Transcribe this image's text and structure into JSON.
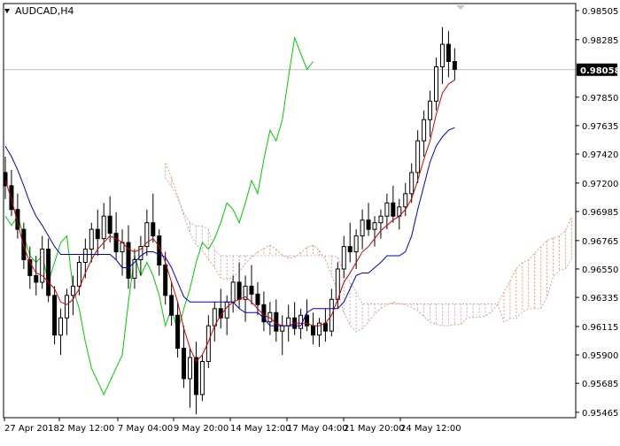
{
  "chart_data": {
    "type": "candlestick",
    "symbol_label": "AUDCAD,H4",
    "price_ticks": [
      "0.98505",
      "0.98285",
      "0.97850",
      "0.97635",
      "0.97420",
      "0.97200",
      "0.96985",
      "0.96765",
      "0.96550",
      "0.96335",
      "0.96115",
      "0.95900",
      "0.95685",
      "0.95465"
    ],
    "current_price_label": "0.98058",
    "current_price": 0.98058,
    "y_range": [
      0.95465,
      0.98505
    ],
    "x_ticks": [
      "27 Apr 2018",
      "2 May 12:00",
      "7 May 04:00",
      "9 May 20:00",
      "14 May 12:00",
      "17 May 04:00",
      "21 May 20:00",
      "24 May 12:00"
    ],
    "grid": false,
    "colors": {
      "background": "#ffffff",
      "candle": "#000000",
      "tenkan_sen": "#cc0000",
      "kijun_sen": "#0000bb",
      "chikou_span": "#00cc00",
      "cloud_span_a": "#e8a070",
      "cloud_span_b": "#c8a8c8",
      "current_price_line": "#c0c0c0"
    },
    "candles": [
      [
        0.9728,
        0.974,
        0.9708,
        0.9718
      ],
      [
        0.9718,
        0.973,
        0.9695,
        0.97
      ],
      [
        0.97,
        0.9712,
        0.9678,
        0.9685
      ],
      [
        0.9685,
        0.969,
        0.9655,
        0.9662
      ],
      [
        0.9662,
        0.9672,
        0.964,
        0.965
      ],
      [
        0.965,
        0.9665,
        0.9635,
        0.9645
      ],
      [
        0.9645,
        0.968,
        0.964,
        0.967
      ],
      [
        0.967,
        0.9678,
        0.963,
        0.9635
      ],
      [
        0.9635,
        0.9642,
        0.9598,
        0.9605
      ],
      [
        0.9605,
        0.9625,
        0.959,
        0.9618
      ],
      [
        0.9618,
        0.964,
        0.9605,
        0.9635
      ],
      [
        0.9635,
        0.965,
        0.962,
        0.9642
      ],
      [
        0.9642,
        0.9665,
        0.9635,
        0.966
      ],
      [
        0.966,
        0.9678,
        0.9648,
        0.967
      ],
      [
        0.967,
        0.969,
        0.966,
        0.9685
      ],
      [
        0.9685,
        0.97,
        0.9665,
        0.9678
      ],
      [
        0.9678,
        0.9705,
        0.967,
        0.9695
      ],
      [
        0.9695,
        0.971,
        0.9675,
        0.9682
      ],
      [
        0.9682,
        0.9698,
        0.9662,
        0.9668
      ],
      [
        0.9668,
        0.9685,
        0.965,
        0.9675
      ],
      [
        0.9675,
        0.9688,
        0.964,
        0.9648
      ],
      [
        0.9648,
        0.967,
        0.964,
        0.9662
      ],
      [
        0.9662,
        0.968,
        0.965,
        0.9672
      ],
      [
        0.9672,
        0.97,
        0.9665,
        0.969
      ],
      [
        0.969,
        0.9712,
        0.9675,
        0.968
      ],
      [
        0.968,
        0.9685,
        0.965,
        0.9658
      ],
      [
        0.9658,
        0.9668,
        0.9628,
        0.9635
      ],
      [
        0.9635,
        0.9645,
        0.9612,
        0.962
      ],
      [
        0.962,
        0.963,
        0.9588,
        0.9595
      ],
      [
        0.9595,
        0.9612,
        0.9565,
        0.9572
      ],
      [
        0.9572,
        0.9595,
        0.955,
        0.9588
      ],
      [
        0.9588,
        0.96,
        0.9545,
        0.956
      ],
      [
        0.956,
        0.959,
        0.9555,
        0.9585
      ],
      [
        0.9585,
        0.962,
        0.958,
        0.9612
      ],
      [
        0.9612,
        0.963,
        0.96,
        0.9625
      ],
      [
        0.9625,
        0.964,
        0.961,
        0.9618
      ],
      [
        0.9618,
        0.9635,
        0.9605,
        0.963
      ],
      [
        0.963,
        0.965,
        0.9622,
        0.9645
      ],
      [
        0.9645,
        0.966,
        0.9625,
        0.9632
      ],
      [
        0.9632,
        0.965,
        0.9615,
        0.9642
      ],
      [
        0.9642,
        0.9658,
        0.9628,
        0.9636
      ],
      [
        0.9636,
        0.9645,
        0.962,
        0.9628
      ],
      [
        0.9628,
        0.9638,
        0.9608,
        0.9615
      ],
      [
        0.9615,
        0.963,
        0.9605,
        0.9622
      ],
      [
        0.9622,
        0.9632,
        0.96,
        0.9608
      ],
      [
        0.9608,
        0.962,
        0.959,
        0.9612
      ],
      [
        0.9612,
        0.9628,
        0.96,
        0.9618
      ],
      [
        0.9618,
        0.963,
        0.9605,
        0.961
      ],
      [
        0.961,
        0.9625,
        0.9602,
        0.962
      ],
      [
        0.962,
        0.9632,
        0.9608,
        0.9612
      ],
      [
        0.9612,
        0.9622,
        0.9598,
        0.9605
      ],
      [
        0.9605,
        0.9618,
        0.9596,
        0.9614
      ],
      [
        0.9614,
        0.9625,
        0.96,
        0.9608
      ],
      [
        0.9608,
        0.964,
        0.9604,
        0.9632
      ],
      [
        0.9632,
        0.966,
        0.9625,
        0.9655
      ],
      [
        0.9655,
        0.968,
        0.9648,
        0.9672
      ],
      [
        0.9672,
        0.969,
        0.966,
        0.9668
      ],
      [
        0.9668,
        0.9685,
        0.9655,
        0.968
      ],
      [
        0.968,
        0.97,
        0.967,
        0.9692
      ],
      [
        0.9692,
        0.9705,
        0.968,
        0.9685
      ],
      [
        0.9685,
        0.9695,
        0.9672,
        0.969
      ],
      [
        0.969,
        0.97,
        0.9678,
        0.9695
      ],
      [
        0.9695,
        0.9712,
        0.9685,
        0.9705
      ],
      [
        0.9705,
        0.9718,
        0.969,
        0.9695
      ],
      [
        0.9695,
        0.9708,
        0.9685,
        0.9702
      ],
      [
        0.9702,
        0.972,
        0.9695,
        0.9712
      ],
      [
        0.9712,
        0.9735,
        0.9705,
        0.9728
      ],
      [
        0.9728,
        0.976,
        0.972,
        0.9752
      ],
      [
        0.9752,
        0.9775,
        0.974,
        0.9768
      ],
      [
        0.9768,
        0.979,
        0.9755,
        0.9782
      ],
      [
        0.9782,
        0.9815,
        0.9775,
        0.9808
      ],
      [
        0.9808,
        0.9838,
        0.9795,
        0.9825
      ],
      [
        0.9825,
        0.9835,
        0.98,
        0.9812
      ],
      [
        0.9812,
        0.9822,
        0.9798,
        0.9806
      ]
    ],
    "tenkan_sen": [
      0.9722,
      0.9708,
      0.969,
      0.9672,
      0.966,
      0.9652,
      0.965,
      0.9645,
      0.964,
      0.963,
      0.9628,
      0.9632,
      0.964,
      0.9652,
      0.9662,
      0.967,
      0.9675,
      0.968,
      0.9678,
      0.9675,
      0.967,
      0.9668,
      0.967,
      0.9675,
      0.9678,
      0.9672,
      0.966,
      0.9645,
      0.963,
      0.961,
      0.9595,
      0.9585,
      0.959,
      0.96,
      0.9612,
      0.962,
      0.9626,
      0.963,
      0.9632,
      0.9634,
      0.963,
      0.9625,
      0.962,
      0.9618,
      0.9614,
      0.9612,
      0.9612,
      0.9614,
      0.9614,
      0.9614,
      0.9612,
      0.9612,
      0.9614,
      0.962,
      0.9632,
      0.9645,
      0.9652,
      0.966,
      0.9668,
      0.9672,
      0.9678,
      0.9684,
      0.9688,
      0.9692,
      0.9695,
      0.97,
      0.9708,
      0.9722,
      0.9738,
      0.9752,
      0.9772,
      0.9788,
      0.9795,
      0.9798
    ],
    "kijun_sen": [
      0.9748,
      0.974,
      0.973,
      0.9718,
      0.9705,
      0.9695,
      0.9688,
      0.968,
      0.9672,
      0.9666,
      0.9666,
      0.9666,
      0.9666,
      0.9666,
      0.9666,
      0.9666,
      0.9666,
      0.9666,
      0.9662,
      0.9656,
      0.9656,
      0.966,
      0.9665,
      0.9668,
      0.9668,
      0.9666,
      0.9664,
      0.9656,
      0.9645,
      0.9634,
      0.963,
      0.963,
      0.963,
      0.963,
      0.963,
      0.963,
      0.963,
      0.963,
      0.9625,
      0.9622,
      0.9622,
      0.9622,
      0.9618,
      0.9612,
      0.9612,
      0.9612,
      0.9612,
      0.9612,
      0.9612,
      0.9622,
      0.9625,
      0.9625,
      0.9625,
      0.9625,
      0.9625,
      0.963,
      0.964,
      0.965,
      0.9652,
      0.9652,
      0.9656,
      0.966,
      0.9665,
      0.9665,
      0.9665,
      0.9668,
      0.968,
      0.97,
      0.9718,
      0.9736,
      0.9748,
      0.9755,
      0.976,
      0.9762
    ],
    "chikou_span": [
      0.9695,
      0.9688,
      0.9695,
      0.968,
      0.9665,
      0.966,
      0.9665,
      0.9645,
      0.966,
      0.9675,
      0.968,
      0.964,
      0.9625,
      0.96,
      0.958,
      0.957,
      0.956,
      0.957,
      0.958,
      0.959,
      0.963,
      0.9665,
      0.965,
      0.966,
      0.965,
      0.9635,
      0.9612,
      0.9625,
      0.9608,
      0.9625,
      0.964,
      0.966,
      0.9675,
      0.967,
      0.9678,
      0.969,
      0.9705,
      0.97,
      0.969,
      0.9705,
      0.9722,
      0.9712,
      0.9738,
      0.976,
      0.9752,
      0.9768,
      0.98,
      0.983,
      0.9818,
      0.9806,
      0.9812
    ]
  }
}
